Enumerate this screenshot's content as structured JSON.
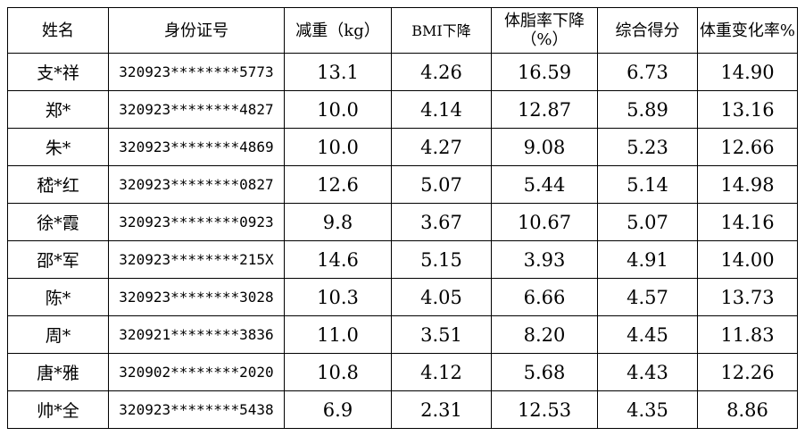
{
  "table": {
    "headers": [
      "姓名",
      "身份证号",
      "减重（kg）",
      "BMI下降",
      "体脂率下降（%）",
      "综合得分",
      "体重变化率%"
    ],
    "rows": [
      [
        "支*祥",
        "320923********5773",
        "13.1",
        "4.26",
        "16.59",
        "6.73",
        "14.90"
      ],
      [
        "郑*",
        "320923********4827",
        "10.0",
        "4.14",
        "12.87",
        "5.89",
        "13.16"
      ],
      [
        "朱*",
        "320923********4869",
        "10.0",
        "4.27",
        "9.08",
        "5.23",
        "12.66"
      ],
      [
        "嵇*红",
        "320923********0827",
        "12.6",
        "5.07",
        "5.44",
        "5.14",
        "14.98"
      ],
      [
        "徐*霞",
        "320923********0923",
        "9.8",
        "3.67",
        "10.67",
        "5.07",
        "14.16"
      ],
      [
        "邵*军",
        "320923********215X",
        "14.6",
        "5.15",
        "3.93",
        "4.91",
        "14.00"
      ],
      [
        "陈*",
        "320923********3028",
        "10.3",
        "4.05",
        "6.66",
        "4.57",
        "13.73"
      ],
      [
        "周*",
        "320921********3836",
        "11.0",
        "3.51",
        "8.20",
        "4.45",
        "11.83"
      ],
      [
        "唐*雅",
        "320902********2020",
        "10.8",
        "4.12",
        "5.68",
        "4.43",
        "12.26"
      ],
      [
        "帅*全",
        "320923********5438",
        "6.9",
        "2.31",
        "12.53",
        "4.35",
        "8.86"
      ]
    ]
  }
}
